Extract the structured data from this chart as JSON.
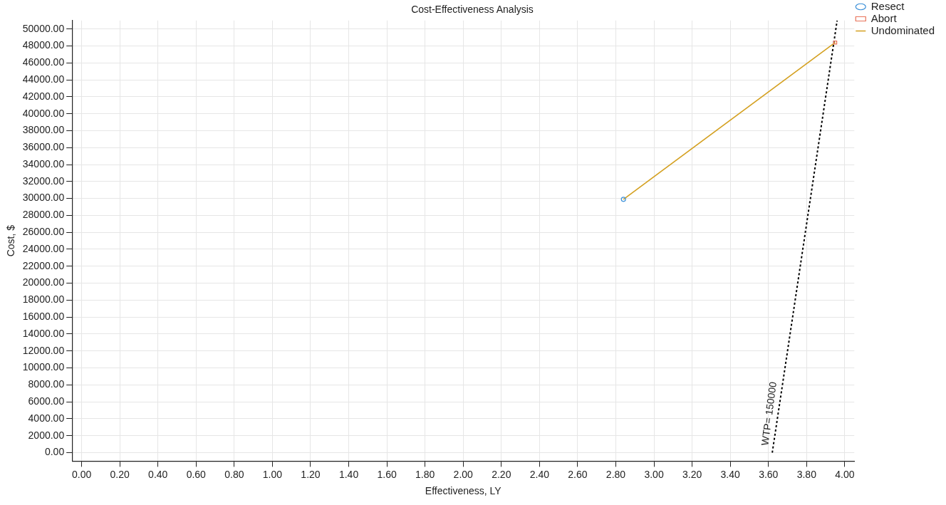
{
  "chart_data": {
    "type": "scatter",
    "title": "Cost-Effectiveness Analysis",
    "xlabel": "Effectiveness, LY",
    "ylabel": "Cost, $",
    "xlim": [
      -0.05,
      4.05
    ],
    "ylim": [
      -1000,
      51000
    ],
    "xticks": [
      {
        "value": 0,
        "label": "0.00"
      },
      {
        "value": 0.2,
        "label": "0.20"
      },
      {
        "value": 0.4,
        "label": "0.40"
      },
      {
        "value": 0.6,
        "label": "0.60"
      },
      {
        "value": 0.8,
        "label": "0.80"
      },
      {
        "value": 1,
        "label": "1.00"
      },
      {
        "value": 1.2,
        "label": "1.20"
      },
      {
        "value": 1.4,
        "label": "1.40"
      },
      {
        "value": 1.6,
        "label": "1.60"
      },
      {
        "value": 1.8,
        "label": "1.80"
      },
      {
        "value": 2,
        "label": "2.00"
      },
      {
        "value": 2.2,
        "label": "2.20"
      },
      {
        "value": 2.4,
        "label": "2.40"
      },
      {
        "value": 2.6,
        "label": "2.60"
      },
      {
        "value": 2.8,
        "label": "2.80"
      },
      {
        "value": 3,
        "label": "3.00"
      },
      {
        "value": 3.2,
        "label": "3.20"
      },
      {
        "value": 3.4,
        "label": "3.40"
      },
      {
        "value": 3.6,
        "label": "3.60"
      },
      {
        "value": 3.8,
        "label": "3.80"
      },
      {
        "value": 4,
        "label": "4.00"
      }
    ],
    "yticks": [
      {
        "value": 0,
        "label": "0.00"
      },
      {
        "value": 2000,
        "label": "2000.00"
      },
      {
        "value": 4000,
        "label": "4000.00"
      },
      {
        "value": 6000,
        "label": "6000.00"
      },
      {
        "value": 8000,
        "label": "8000.00"
      },
      {
        "value": 10000,
        "label": "10000.00"
      },
      {
        "value": 12000,
        "label": "12000.00"
      },
      {
        "value": 14000,
        "label": "14000.00"
      },
      {
        "value": 16000,
        "label": "16000.00"
      },
      {
        "value": 18000,
        "label": "18000.00"
      },
      {
        "value": 20000,
        "label": "20000.00"
      },
      {
        "value": 22000,
        "label": "22000.00"
      },
      {
        "value": 24000,
        "label": "24000.00"
      },
      {
        "value": 26000,
        "label": "26000.00"
      },
      {
        "value": 28000,
        "label": "28000.00"
      },
      {
        "value": 30000,
        "label": "30000.00"
      },
      {
        "value": 32000,
        "label": "32000.00"
      },
      {
        "value": 34000,
        "label": "34000.00"
      },
      {
        "value": 36000,
        "label": "36000.00"
      },
      {
        "value": 38000,
        "label": "38000.00"
      },
      {
        "value": 40000,
        "label": "40000.00"
      },
      {
        "value": 42000,
        "label": "42000.00"
      },
      {
        "value": 44000,
        "label": "44000.00"
      },
      {
        "value": 46000,
        "label": "46000.00"
      },
      {
        "value": 48000,
        "label": "48000.00"
      },
      {
        "value": 50000,
        "label": "50000.00"
      }
    ],
    "grid": true,
    "legend": "top right",
    "series": [
      {
        "name": "Resect",
        "marker": "circle",
        "color": "#3a8fd8",
        "x": [
          2.84
        ],
        "values": [
          29900
        ]
      },
      {
        "name": "Abort",
        "marker": "square",
        "color": "#e8735a",
        "x": [
          3.95
        ],
        "values": [
          48400
        ]
      },
      {
        "name": "Undominated",
        "type": "line",
        "marker": "none",
        "color": "#d4a020",
        "x": [
          2.84,
          3.95
        ],
        "values": [
          29900,
          48400
        ]
      },
      {
        "type": "line",
        "marker": "none",
        "line_style": "dashed",
        "color": "#000000",
        "x": [
          3.62,
          3.96
        ],
        "values": [
          0,
          51000
        ]
      }
    ],
    "annotations": [
      "WTP= 150000"
    ]
  }
}
